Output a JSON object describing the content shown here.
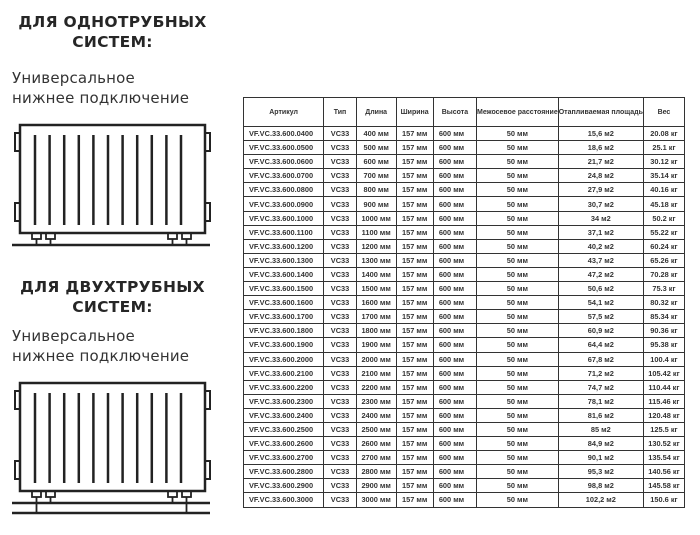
{
  "section_one": {
    "heading_line1": "ДЛЯ ОДНОТРУБНЫХ",
    "heading_line2": "СИСТЕМ:",
    "sub_line1": "Универсальное",
    "sub_line2": "нижнее подключение"
  },
  "section_two": {
    "heading_line1": "ДЛЯ ДВУХТРУБНЫХ",
    "heading_line2": "СИСТЕМ:",
    "sub_line1": "Универсальное",
    "sub_line2": "нижнее подключение"
  },
  "table": {
    "headers": [
      "Артикул",
      "Тип",
      "Длина",
      "Ширина",
      "Высота",
      "Межосевое расстояние",
      "Отапливаемая площадь",
      "Вес"
    ],
    "rows": [
      [
        "VF.VC.33.600.0400",
        "VC33",
        "400 мм",
        "157 мм",
        "600 мм",
        "50 мм",
        "15,6 м2",
        "20.08 кг"
      ],
      [
        "VF.VC.33.600.0500",
        "VC33",
        "500 мм",
        "157 мм",
        "600 мм",
        "50 мм",
        "18,6 м2",
        "25.1 кг"
      ],
      [
        "VF.VC.33.600.0600",
        "VC33",
        "600 мм",
        "157 мм",
        "600 мм",
        "50 мм",
        "21,7 м2",
        "30.12 кг"
      ],
      [
        "VF.VC.33.600.0700",
        "VC33",
        "700 мм",
        "157 мм",
        "600 мм",
        "50 мм",
        "24,8 м2",
        "35.14 кг"
      ],
      [
        "VF.VC.33.600.0800",
        "VC33",
        "800 мм",
        "157 мм",
        "600 мм",
        "50 мм",
        "27,9 м2",
        "40.16 кг"
      ],
      [
        "VF.VC.33.600.0900",
        "VC33",
        "900 мм",
        "157 мм",
        "600 мм",
        "50 мм",
        "30,7 м2",
        "45.18 кг"
      ],
      [
        "VF.VC.33.600.1000",
        "VC33",
        "1000 мм",
        "157 мм",
        "600 мм",
        "50 мм",
        "34 м2",
        "50.2 кг"
      ],
      [
        "VF.VC.33.600.1100",
        "VC33",
        "1100 мм",
        "157 мм",
        "600 мм",
        "50 мм",
        "37,1 м2",
        "55.22 кг"
      ],
      [
        "VF.VC.33.600.1200",
        "VC33",
        "1200 мм",
        "157 мм",
        "600 мм",
        "50 мм",
        "40,2 м2",
        "60.24 кг"
      ],
      [
        "VF.VC.33.600.1300",
        "VC33",
        "1300 мм",
        "157 мм",
        "600 мм",
        "50 мм",
        "43,7 м2",
        "65.26 кг"
      ],
      [
        "VF.VC.33.600.1400",
        "VC33",
        "1400 мм",
        "157 мм",
        "600 мм",
        "50 мм",
        "47,2 м2",
        "70.28 кг"
      ],
      [
        "VF.VC.33.600.1500",
        "VC33",
        "1500 мм",
        "157 мм",
        "600 мм",
        "50 мм",
        "50,6 м2",
        "75.3 кг"
      ],
      [
        "VF.VC.33.600.1600",
        "VC33",
        "1600 мм",
        "157 мм",
        "600 мм",
        "50 мм",
        "54,1 м2",
        "80.32 кг"
      ],
      [
        "VF.VC.33.600.1700",
        "VC33",
        "1700 мм",
        "157 мм",
        "600 мм",
        "50 мм",
        "57,5 м2",
        "85.34 кг"
      ],
      [
        "VF.VC.33.600.1800",
        "VC33",
        "1800 мм",
        "157 мм",
        "600 мм",
        "50 мм",
        "60,9 м2",
        "90.36 кг"
      ],
      [
        "VF.VC.33.600.1900",
        "VC33",
        "1900 мм",
        "157 мм",
        "600 мм",
        "50 мм",
        "64,4 м2",
        "95.38 кг"
      ],
      [
        "VF.VC.33.600.2000",
        "VC33",
        "2000 мм",
        "157 мм",
        "600 мм",
        "50 мм",
        "67,8 м2",
        "100.4 кг"
      ],
      [
        "VF.VC.33.600.2100",
        "VC33",
        "2100 мм",
        "157 мм",
        "600 мм",
        "50 мм",
        "71,2 м2",
        "105.42 кг"
      ],
      [
        "VF.VC.33.600.2200",
        "VC33",
        "2200 мм",
        "157 мм",
        "600 мм",
        "50 мм",
        "74,7 м2",
        "110.44 кг"
      ],
      [
        "VF.VC.33.600.2300",
        "VC33",
        "2300 мм",
        "157 мм",
        "600 мм",
        "50 мм",
        "78,1 м2",
        "115.46 кг"
      ],
      [
        "VF.VC.33.600.2400",
        "VC33",
        "2400 мм",
        "157 мм",
        "600 мм",
        "50 мм",
        "81,6 м2",
        "120.48 кг"
      ],
      [
        "VF.VC.33.600.2500",
        "VC33",
        "2500 мм",
        "157 мм",
        "600 мм",
        "50 мм",
        "85 м2",
        "125.5 кг"
      ],
      [
        "VF.VC.33.600.2600",
        "VC33",
        "2600 мм",
        "157 мм",
        "600 мм",
        "50 мм",
        "84,9 м2",
        "130.52 кг"
      ],
      [
        "VF.VC.33.600.2700",
        "VC33",
        "2700 мм",
        "157 мм",
        "600 мм",
        "50 мм",
        "90,1 м2",
        "135.54 кг"
      ],
      [
        "VF.VC.33.600.2800",
        "VC33",
        "2800 мм",
        "157 мм",
        "600 мм",
        "50 мм",
        "95,3 м2",
        "140.56 кг"
      ],
      [
        "VF.VC.33.600.2900",
        "VC33",
        "2900 мм",
        "157 мм",
        "600 мм",
        "50 мм",
        "98,8 м2",
        "145.58 кг"
      ],
      [
        "VF.VC.33.600.3000",
        "VC33",
        "3000 мм",
        "157 мм",
        "600 мм",
        "50 мм",
        "102,2 м2",
        "150.6 кг"
      ]
    ]
  },
  "icons": {
    "radiator_one": "radiator-single-pipe-icon",
    "radiator_two": "radiator-two-pipe-icon"
  }
}
